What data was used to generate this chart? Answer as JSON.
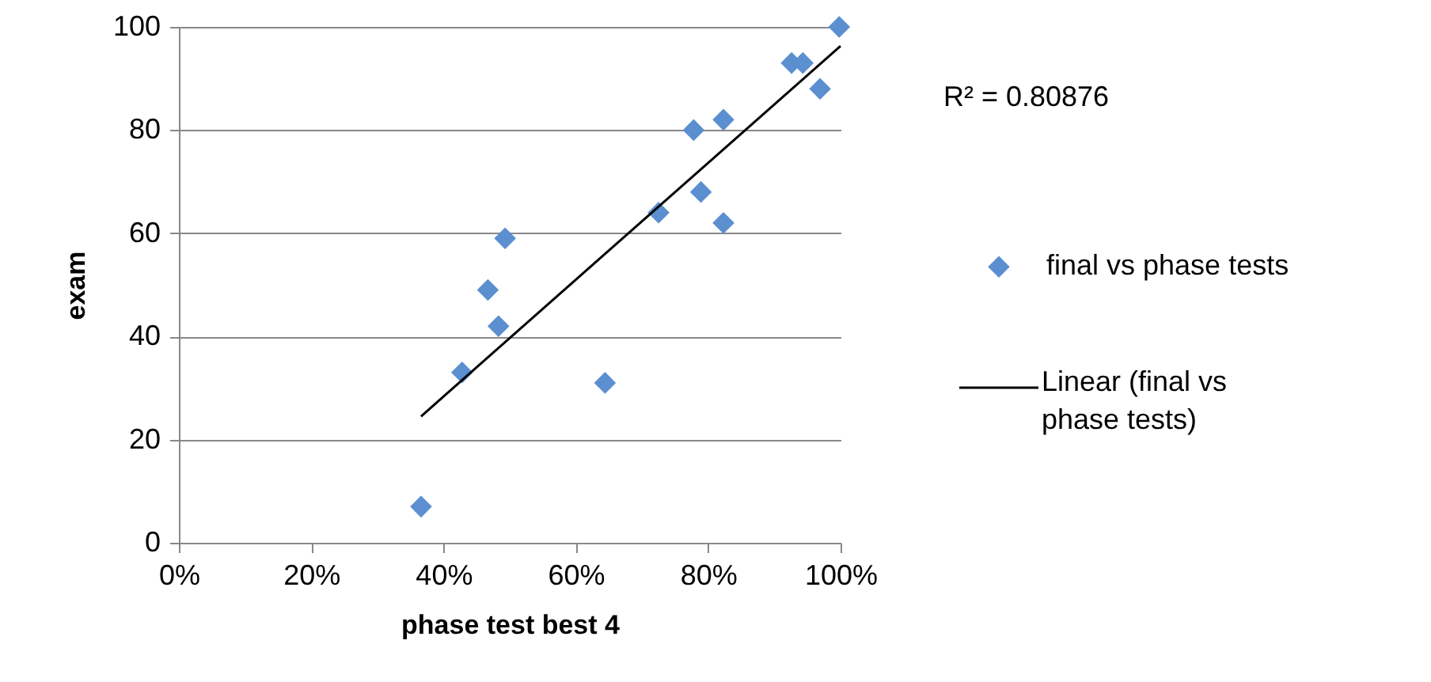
{
  "chart_data": {
    "type": "scatter",
    "xlabel": "phase test best 4",
    "ylabel": "exam",
    "xlim": [
      0,
      1
    ],
    "ylim": [
      0,
      100
    ],
    "xticks": [
      {
        "value": 0,
        "label": "0%"
      },
      {
        "value": 0.2,
        "label": "20%"
      },
      {
        "value": 0.4,
        "label": "40%"
      },
      {
        "value": 0.6,
        "label": "60%"
      },
      {
        "value": 0.8,
        "label": "80%"
      },
      {
        "value": 1,
        "label": "100%"
      }
    ],
    "yticks": [
      0,
      20,
      40,
      60,
      80,
      100
    ],
    "grid": "y",
    "legend": "right",
    "annotations": [
      "R² = 0.80876"
    ],
    "series": [
      {
        "name": "final vs phase tests",
        "marker": "diamond",
        "color": "#5b8fd0",
        "x": [
          0.366,
          0.428,
          0.467,
          0.483,
          0.493,
          0.644,
          0.725,
          0.778,
          0.789,
          0.823,
          0.823,
          0.926,
          0.943,
          0.969,
          0.998
        ],
        "values": [
          7,
          33,
          49,
          42,
          59,
          31,
          64,
          80,
          68,
          82,
          62,
          93,
          93,
          88,
          100
        ]
      },
      {
        "name": "Linear (final vs phase tests)",
        "type": "line",
        "color": "#000000",
        "line_style": "solid",
        "marker": "none",
        "x": [
          0.366,
          1
        ],
        "values": [
          24.5,
          96.3
        ]
      }
    ]
  }
}
